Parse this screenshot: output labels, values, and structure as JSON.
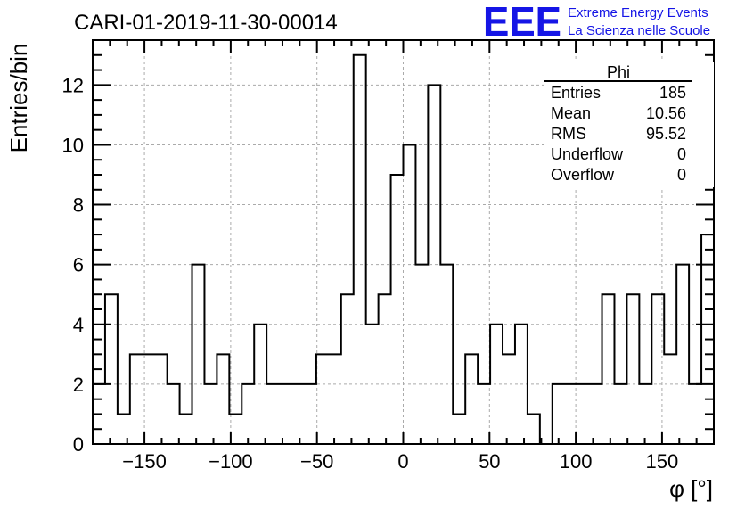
{
  "title": "CARI-01-2019-11-30-00014",
  "logo": {
    "mark": "EEE",
    "line1": "Extreme Energy Events",
    "line2": "La Scienza nelle Scuole",
    "color": "#1515e6"
  },
  "stats": {
    "name": "Phi",
    "rows": [
      {
        "label": "Entries",
        "value": "185"
      },
      {
        "label": "Mean",
        "value": "10.56"
      },
      {
        "label": "RMS",
        "value": "95.52"
      },
      {
        "label": "Underflow",
        "value": "0"
      },
      {
        "label": "Overflow",
        "value": "0"
      }
    ]
  },
  "chart_data": {
    "type": "bar",
    "histogram": true,
    "title": "CARI-01-2019-11-30-00014",
    "xlabel": "φ [°]",
    "ylabel": "Entries/bin",
    "xlim": [
      -180,
      180
    ],
    "ylim": [
      0,
      13.5
    ],
    "bin_width": 7.2,
    "x_ticks": [
      -150,
      -100,
      -50,
      0,
      50,
      100,
      150
    ],
    "x_tick_labels": [
      "−150",
      "−100",
      "−50",
      "0",
      "50",
      "100",
      "150"
    ],
    "y_ticks": [
      0,
      2,
      4,
      6,
      8,
      10,
      12
    ],
    "y_tick_labels": [
      "0",
      "2",
      "4",
      "6",
      "8",
      "10",
      "12"
    ],
    "grid": true,
    "legend": "top-right stats box",
    "values": [
      2,
      5,
      1,
      3,
      3,
      3,
      2,
      1,
      6,
      2,
      3,
      1,
      2,
      4,
      2,
      2,
      2,
      2,
      3,
      3,
      5,
      13,
      4,
      5,
      9,
      10,
      6,
      12,
      6,
      1,
      3,
      2,
      4,
      3,
      4,
      1,
      0,
      2,
      2,
      2,
      2,
      5,
      2,
      5,
      2,
      5,
      3,
      6,
      2,
      7
    ]
  }
}
